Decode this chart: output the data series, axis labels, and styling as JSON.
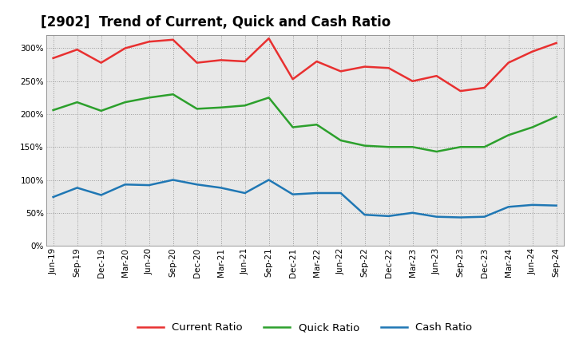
{
  "title": "[2902]  Trend of Current, Quick and Cash Ratio",
  "labels": [
    "Jun-19",
    "Sep-19",
    "Dec-19",
    "Mar-20",
    "Jun-20",
    "Sep-20",
    "Dec-20",
    "Mar-21",
    "Jun-21",
    "Sep-21",
    "Dec-21",
    "Mar-22",
    "Jun-22",
    "Sep-22",
    "Dec-22",
    "Mar-23",
    "Jun-23",
    "Sep-23",
    "Dec-23",
    "Mar-24",
    "Jun-24",
    "Sep-24"
  ],
  "current_ratio": [
    285,
    298,
    278,
    300,
    310,
    313,
    278,
    282,
    280,
    315,
    253,
    280,
    265,
    272,
    270,
    250,
    258,
    235,
    240,
    278,
    295,
    308
  ],
  "quick_ratio": [
    206,
    218,
    205,
    218,
    225,
    230,
    208,
    210,
    213,
    225,
    180,
    184,
    160,
    152,
    150,
    150,
    143,
    150,
    150,
    168,
    180,
    196
  ],
  "cash_ratio": [
    74,
    88,
    77,
    93,
    92,
    100,
    93,
    88,
    80,
    100,
    78,
    80,
    80,
    47,
    45,
    50,
    44,
    43,
    44,
    59,
    62,
    61
  ],
  "current_color": "#e83030",
  "quick_color": "#2ca02c",
  "cash_color": "#1f77b4",
  "ylim": [
    0,
    320
  ],
  "yticks": [
    0,
    50,
    100,
    150,
    200,
    250,
    300
  ],
  "background_color": "#ffffff",
  "plot_bg_color": "#e8e8e8",
  "grid_color": "#999999",
  "legend_labels": [
    "Current Ratio",
    "Quick Ratio",
    "Cash Ratio"
  ],
  "title_fontsize": 12,
  "tick_fontsize": 7.5,
  "legend_fontsize": 9.5
}
